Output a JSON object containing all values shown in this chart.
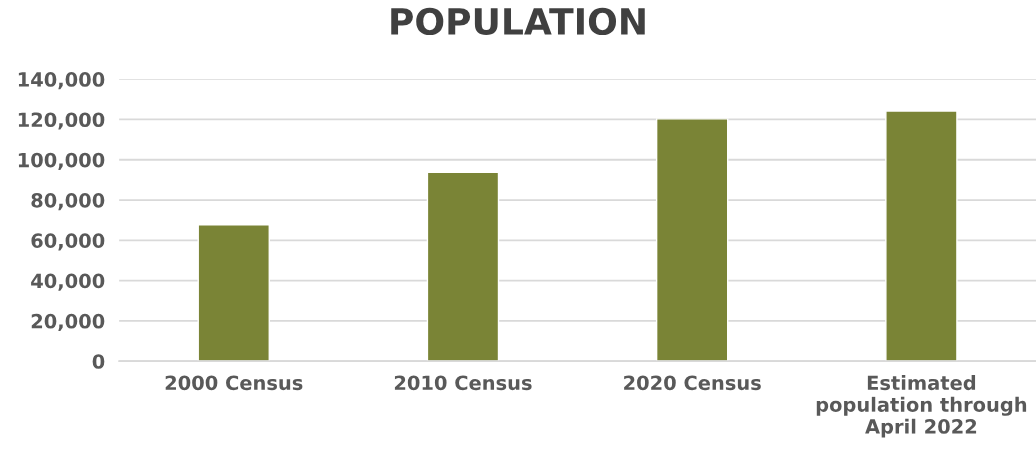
{
  "chart_data": {
    "type": "bar",
    "title": "POPULATION",
    "categories": [
      "2000 Census",
      "2010 Census",
      "2020 Census",
      "Estimated\npopulation through\nApril 2022"
    ],
    "values": [
      67700,
      93700,
      120300,
      124200
    ],
    "color": "#7a8436",
    "ylim": [
      0,
      140000
    ],
    "yticks": [
      {
        "value": 0,
        "label": "0"
      },
      {
        "value": 20000,
        "label": "20,000"
      },
      {
        "value": 40000,
        "label": "40,000"
      },
      {
        "value": 60000,
        "label": "60,000"
      },
      {
        "value": 80000,
        "label": "80,000"
      },
      {
        "value": 100000,
        "label": "100,000"
      },
      {
        "value": 120000,
        "label": "120,000"
      },
      {
        "value": 140000,
        "label": "140,000"
      }
    ],
    "grid": "y"
  }
}
